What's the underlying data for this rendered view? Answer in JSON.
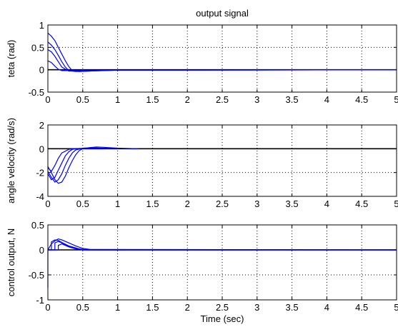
{
  "title": "output signal",
  "colors": {
    "series": "#0000ff",
    "zero_line": "#000000",
    "grid": "#000000"
  },
  "chart_data": [
    {
      "type": "line",
      "title": "output signal",
      "xlabel": "",
      "ylabel": "teta (rad)",
      "xlim": [
        0,
        5
      ],
      "ylim": [
        -0.5,
        1
      ],
      "xticks": [
        0,
        0.5,
        1,
        1.5,
        2,
        2.5,
        3,
        3.5,
        4,
        4.5,
        5
      ],
      "xtick_labels": [
        "0",
        "0.5",
        "1",
        "1.5",
        "2",
        "2.5",
        "3",
        "3.5",
        "4",
        "4.5",
        "5"
      ],
      "yticks": [
        -0.5,
        0,
        0.5,
        1
      ],
      "ytick_labels": [
        "-0.5",
        "0",
        "0.5",
        "1"
      ],
      "grid": true,
      "reference_line": 0,
      "series": [
        {
          "x": [
            0,
            0.05,
            0.1,
            0.15,
            0.2,
            0.25,
            0.3,
            0.35,
            0.45,
            0.6,
            1.0,
            5
          ],
          "y": [
            0.82,
            0.75,
            0.65,
            0.5,
            0.35,
            0.2,
            0.07,
            -0.02,
            -0.04,
            -0.03,
            -0.01,
            0
          ]
        },
        {
          "x": [
            0,
            0.05,
            0.1,
            0.15,
            0.2,
            0.25,
            0.3,
            0.4,
            0.6,
            1.0,
            5
          ],
          "y": [
            0.62,
            0.55,
            0.45,
            0.32,
            0.18,
            0.06,
            -0.02,
            -0.04,
            -0.03,
            -0.01,
            0
          ]
        },
        {
          "x": [
            0,
            0.05,
            0.1,
            0.15,
            0.2,
            0.3,
            0.45,
            0.7,
            5
          ],
          "y": [
            0.45,
            0.4,
            0.3,
            0.18,
            0.06,
            -0.03,
            -0.03,
            -0.01,
            0
          ]
        },
        {
          "x": [
            0,
            0.05,
            0.1,
            0.15,
            0.2,
            0.3,
            0.5,
            5
          ],
          "y": [
            0.2,
            0.16,
            0.08,
            0.01,
            -0.02,
            -0.02,
            -0.01,
            0
          ]
        }
      ]
    },
    {
      "type": "line",
      "title": "",
      "xlabel": "",
      "ylabel": "angle velocity (rad/s)",
      "xlim": [
        0,
        5
      ],
      "ylim": [
        -4,
        2
      ],
      "xticks": [
        0,
        0.5,
        1,
        1.5,
        2,
        2.5,
        3,
        3.5,
        4,
        4.5,
        5
      ],
      "xtick_labels": [
        "0",
        "0.5",
        "1",
        "1.5",
        "2",
        "2.5",
        "3",
        "3.5",
        "4",
        "4.5",
        "5"
      ],
      "yticks": [
        -4,
        -2,
        0,
        2
      ],
      "ytick_labels": [
        "-4",
        "-2",
        "0",
        "2"
      ],
      "grid": true,
      "reference_line": 0,
      "series": [
        {
          "x": [
            0,
            0.05,
            0.1,
            0.15,
            0.2,
            0.25,
            0.3,
            0.35,
            0.4,
            0.45,
            0.5,
            0.6,
            0.7,
            0.8,
            1.0,
            1.3
          ],
          "y": [
            -1.5,
            -2.0,
            -2.6,
            -2.9,
            -2.8,
            -2.3,
            -1.6,
            -1.0,
            -0.5,
            -0.15,
            0.0,
            0.1,
            0.15,
            0.12,
            0.05,
            0.0
          ]
        },
        {
          "x": [
            0,
            0.05,
            0.1,
            0.15,
            0.2,
            0.25,
            0.3,
            0.35,
            0.4,
            0.5,
            0.6,
            0.8,
            1.0
          ],
          "y": [
            -1.9,
            -2.4,
            -2.8,
            -2.6,
            -2.1,
            -1.4,
            -0.8,
            -0.35,
            -0.1,
            0.05,
            0.08,
            0.05,
            0.0
          ]
        },
        {
          "x": [
            0,
            0.05,
            0.1,
            0.15,
            0.2,
            0.25,
            0.3,
            0.35,
            0.45,
            0.6,
            0.8
          ],
          "y": [
            -2.1,
            -2.6,
            -2.4,
            -1.8,
            -1.2,
            -0.6,
            -0.25,
            -0.05,
            0.03,
            0.02,
            0.0
          ]
        },
        {
          "x": [
            0,
            0.05,
            0.1,
            0.15,
            0.2,
            0.3,
            0.4,
            0.6
          ],
          "y": [
            -1.6,
            -1.9,
            -1.4,
            -0.8,
            -0.35,
            -0.05,
            0.02,
            0.0
          ]
        }
      ]
    },
    {
      "type": "line",
      "title": "",
      "xlabel": "Time (sec)",
      "ylabel": "control output, N",
      "xlim": [
        0,
        5
      ],
      "ylim": [
        -1,
        0.5
      ],
      "xticks": [
        0,
        0.5,
        1,
        1.5,
        2,
        2.5,
        3,
        3.5,
        4,
        4.5,
        5
      ],
      "xtick_labels": [
        "0",
        "0.5",
        "1",
        "1.5",
        "2",
        "2.5",
        "3",
        "3.5",
        "4",
        "4.5",
        "5"
      ],
      "yticks": [
        -1,
        -0.5,
        0,
        0.5
      ],
      "ytick_labels": [
        "-1",
        "-0.5",
        "0",
        "0.5"
      ],
      "grid": true,
      "reference_line": 0,
      "series": [
        {
          "x": [
            0,
            0.0,
            0.05,
            0.1,
            0.15,
            0.2,
            0.3,
            0.4,
            0.5,
            0.6,
            5
          ],
          "y": [
            -0.76,
            0.0,
            0.12,
            0.18,
            0.22,
            0.2,
            0.14,
            0.08,
            0.03,
            0.01,
            0
          ]
        },
        {
          "x": [
            0,
            0.05,
            0.05,
            0.1,
            0.15,
            0.2,
            0.3,
            0.45,
            0.55,
            5
          ],
          "y": [
            0,
            0,
            0.16,
            0.2,
            0.19,
            0.15,
            0.08,
            0.02,
            0.0,
            0
          ]
        },
        {
          "x": [
            0,
            0.1,
            0.1,
            0.15,
            0.2,
            0.3,
            0.4,
            0.5,
            5
          ],
          "y": [
            0,
            0,
            0.14,
            0.17,
            0.14,
            0.07,
            0.02,
            0.0,
            0
          ]
        },
        {
          "x": [
            0,
            0.15,
            0.15,
            0.2,
            0.3,
            0.4,
            0.5,
            5
          ],
          "y": [
            0,
            0,
            0.09,
            0.12,
            0.06,
            0.02,
            0.0,
            0
          ]
        }
      ]
    }
  ]
}
